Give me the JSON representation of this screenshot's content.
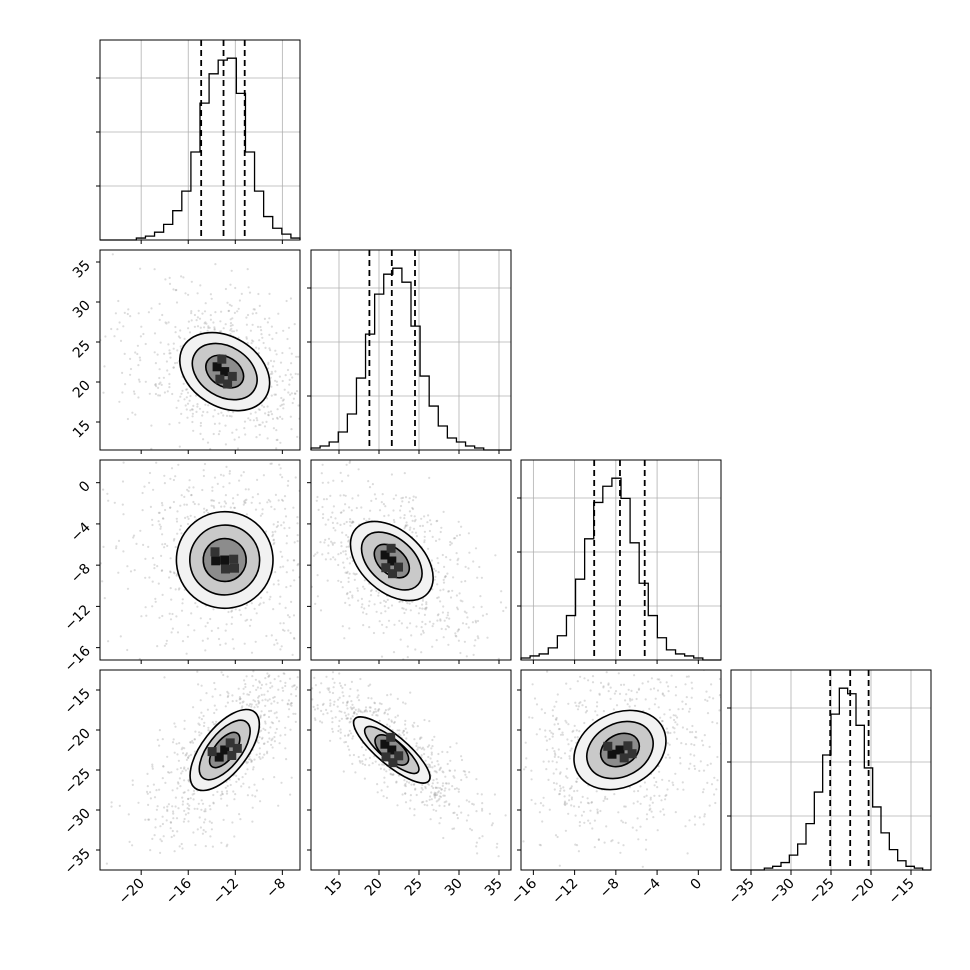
{
  "chart_data": {
    "type": "corner",
    "grid": true,
    "params": [
      {
        "range": [
          -23.5,
          -6.5
        ],
        "ticks": [
          -20,
          -16,
          -12,
          -8
        ],
        "quantiles": [
          -14.9,
          -13.0,
          -11.2
        ],
        "hist_edges": [
          -23.5,
          -6.5
        ],
        "hist": [
          0,
          0,
          0,
          0,
          1,
          2,
          4,
          8,
          15,
          25,
          45,
          70,
          85,
          92,
          93,
          75,
          45,
          25,
          12,
          6,
          3,
          1
        ]
      },
      {
        "range": [
          11.5,
          36.5
        ],
        "ticks": [
          15,
          20,
          25,
          30,
          35
        ],
        "quantiles": [
          18.8,
          21.6,
          24.5
        ],
        "hist": [
          1,
          2,
          4,
          9,
          18,
          36,
          58,
          78,
          88,
          91,
          84,
          62,
          37,
          22,
          12,
          6,
          4,
          2,
          1,
          0,
          0,
          0
        ]
      },
      {
        "range": [
          -17.2,
          2.2
        ],
        "ticks": [
          -16,
          -12,
          -8,
          -4,
          0
        ],
        "quantiles": [
          -10.1,
          -7.6,
          -5.2
        ],
        "hist": [
          1,
          2,
          3,
          6,
          12,
          22,
          40,
          60,
          78,
          86,
          90,
          80,
          58,
          38,
          22,
          11,
          5,
          3,
          2,
          1,
          0,
          0
        ]
      },
      {
        "range": [
          -37.5,
          -12.5
        ],
        "ticks": [
          -35,
          -30,
          -25,
          -20,
          -15
        ],
        "quantiles": [
          -25.1,
          -22.6,
          -20.3
        ],
        "hist": [
          0,
          0,
          0,
          0,
          1,
          2,
          4,
          8,
          14,
          25,
          42,
          62,
          84,
          98,
          95,
          78,
          55,
          34,
          20,
          11,
          5,
          2,
          1,
          0
        ]
      }
    ],
    "pairs": [
      {
        "row": 1,
        "col": 0,
        "center": [
          -12.9,
          21.3
        ],
        "angle": -32,
        "levels": [
          [
            3.6,
            5.0
          ],
          [
            2.6,
            3.6
          ],
          [
            1.5,
            2.1
          ]
        ]
      },
      {
        "row": 2,
        "col": 0,
        "center": [
          -12.9,
          -7.5
        ],
        "angle": 5,
        "levels": [
          [
            3.6,
            3.6
          ],
          [
            2.6,
            2.6
          ],
          [
            1.5,
            1.6
          ]
        ]
      },
      {
        "row": 2,
        "col": 1,
        "center": [
          21.6,
          -7.6
        ],
        "angle": -42,
        "levels": [
          [
            5.2,
            3.3
          ],
          [
            3.8,
            2.4
          ],
          [
            2.2,
            1.4
          ]
        ]
      },
      {
        "row": 3,
        "col": 0,
        "center": [
          -12.9,
          -22.5
        ],
        "angle": 52,
        "levels": [
          [
            6.0,
            2.8
          ],
          [
            4.4,
            2.0
          ],
          [
            2.6,
            1.2
          ]
        ]
      },
      {
        "row": 3,
        "col": 1,
        "center": [
          21.6,
          -22.5
        ],
        "angle": -40,
        "levels": [
          [
            6.2,
            1.9
          ],
          [
            4.4,
            1.4
          ],
          [
            2.6,
            0.8
          ]
        ]
      },
      {
        "row": 3,
        "col": 2,
        "center": [
          -7.6,
          -22.5
        ],
        "angle": 28,
        "levels": [
          [
            5.0,
            3.8
          ],
          [
            3.6,
            2.8
          ],
          [
            2.1,
            1.6
          ]
        ]
      }
    ],
    "yticks": {
      "1": [
        15,
        20,
        25,
        30,
        35
      ],
      "2": [
        -16,
        -12,
        -8,
        -4,
        0
      ],
      "3": [
        -35,
        -30,
        -25,
        -20,
        -15
      ]
    }
  }
}
